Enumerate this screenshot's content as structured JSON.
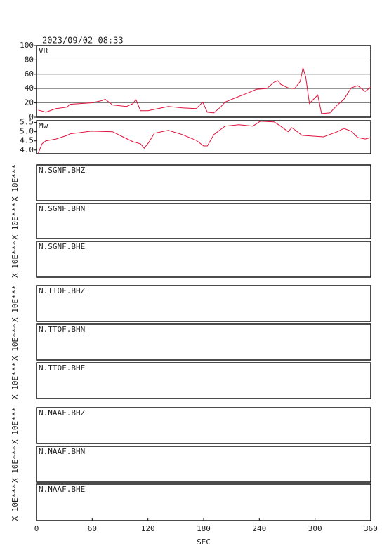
{
  "chart_data": [
    {
      "type": "line",
      "title": "2023/09/02 08:33",
      "ylabel": "VR",
      "x": [
        2,
        10,
        21,
        33,
        36,
        59,
        70,
        74,
        82,
        97,
        104,
        107,
        112,
        120,
        131,
        142,
        157,
        172,
        179,
        184,
        191,
        199,
        203,
        214,
        226,
        237,
        248,
        256,
        260,
        263,
        271,
        278,
        284,
        287,
        290,
        294,
        299,
        303,
        307,
        316,
        324,
        331,
        339,
        346,
        354,
        360
      ],
      "series": [
        {
          "name": "VR",
          "color": "#e0103a",
          "values": [
            10,
            7,
            12,
            14,
            18,
            20,
            23,
            25,
            17,
            15,
            19,
            25,
            9,
            9,
            12,
            15,
            13,
            12,
            21,
            7,
            6,
            15,
            21,
            27,
            33,
            39,
            40,
            49,
            51,
            46,
            41,
            40,
            50,
            69,
            56,
            19,
            26,
            31,
            5,
            6,
            17,
            25,
            41,
            44,
            36,
            42
          ]
        }
      ],
      "xlim": [
        0,
        360
      ],
      "ylim": [
        0,
        100
      ],
      "yticks": [
        0,
        20,
        40,
        60,
        80,
        100
      ],
      "grid": true
    },
    {
      "type": "line",
      "ylabel": "Mw",
      "x": [
        2,
        6,
        10,
        21,
        33,
        36,
        59,
        82,
        93,
        104,
        112,
        116,
        121,
        127,
        142,
        157,
        172,
        180,
        184,
        191,
        203,
        218,
        233,
        241,
        256,
        263,
        271,
        275,
        286,
        309,
        324,
        331,
        339,
        346,
        354,
        360
      ],
      "series": [
        {
          "name": "Mw",
          "color": "#e0103a",
          "values": [
            3.84,
            4.34,
            4.5,
            4.6,
            4.8,
            4.88,
            5.03,
            5.0,
            4.72,
            4.45,
            4.34,
            4.1,
            4.42,
            4.92,
            5.07,
            4.84,
            4.53,
            4.22,
            4.22,
            4.84,
            5.3,
            5.38,
            5.3,
            5.57,
            5.53,
            5.3,
            5.0,
            5.22,
            4.8,
            4.72,
            5.0,
            5.18,
            5.03,
            4.68,
            4.6,
            4.68
          ]
        }
      ],
      "xlim": [
        0,
        360
      ],
      "ylim": [
        3.8,
        5.6
      ],
      "yticks": [
        {
          "value": 4,
          "label": "4.0"
        },
        4.5,
        {
          "value": 5,
          "label": "5.0"
        },
        5.5
      ]
    },
    {
      "type": "traces",
      "panels": [
        {
          "name": "N.SGNF.BHZ",
          "ylabel": "X 10E***"
        },
        {
          "name": "N.SGNF.BHN",
          "ylabel": "X 10E***"
        },
        {
          "name": "N.SGNF.BHE",
          "ylabel": "X 10E***"
        },
        {
          "name": "N.TTOF.BHZ",
          "ylabel": "X 10E***"
        },
        {
          "name": "N.TTOF.BHN",
          "ylabel": "X 10E***"
        },
        {
          "name": "N.TTOF.BHE",
          "ylabel": "X 10E***"
        },
        {
          "name": "N.NAAF.BHZ",
          "ylabel": "X 10E***"
        },
        {
          "name": "N.NAAF.BHN",
          "ylabel": "X 10E***"
        },
        {
          "name": "N.NAAF.BHE",
          "ylabel": "X 10E***"
        }
      ],
      "xlim": [
        0,
        360
      ],
      "xticks": [
        0,
        60,
        120,
        180,
        240,
        300,
        360
      ],
      "xlabel": "SEC"
    }
  ]
}
